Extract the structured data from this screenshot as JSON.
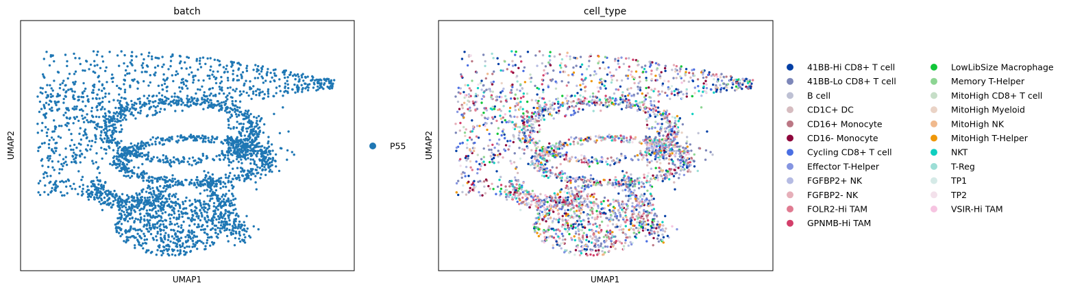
{
  "chart_data": [
    {
      "type": "scatter",
      "title": "batch",
      "xlabel": "UMAP1",
      "ylabel": "UMAP2",
      "xticks": "none",
      "yticks": "none",
      "grid": false,
      "legend": {
        "placement": "right",
        "entries": [
          {
            "label": "P55",
            "color": "#1f77b4"
          }
        ]
      },
      "point_color": "#1f77b4",
      "series": [
        {
          "name": "P55",
          "shape": "umap-cloud"
        }
      ]
    },
    {
      "type": "scatter",
      "title": "cell_type",
      "xlabel": "UMAP1",
      "ylabel": "UMAP2",
      "xticks": "none",
      "yticks": "none",
      "grid": false,
      "legend": {
        "placement": "right",
        "columns": 2,
        "entries": [
          {
            "label": "41BB-Hi CD8+ T cell",
            "color": "#023fa5"
          },
          {
            "label": "41BB-Lo CD8+ T cell",
            "color": "#7d87b9"
          },
          {
            "label": "B cell",
            "color": "#bec1d4"
          },
          {
            "label": "CD1C+ DC",
            "color": "#d6bcc0"
          },
          {
            "label": "CD16+ Monocyte",
            "color": "#bb7784"
          },
          {
            "label": "CD16- Monocyte",
            "color": "#8e063b"
          },
          {
            "label": "Cycling CD8+ T cell",
            "color": "#4a6fe3"
          },
          {
            "label": "Effector T-Helper",
            "color": "#8595e1"
          },
          {
            "label": "FGFBP2+ NK",
            "color": "#b5bbe3"
          },
          {
            "label": "FGFBP2- NK",
            "color": "#e6afb9"
          },
          {
            "label": "FOLR2-Hi TAM",
            "color": "#e07b91"
          },
          {
            "label": "GPNMB-Hi TAM",
            "color": "#d33f6a"
          },
          {
            "label": "LowLibSize Macrophage",
            "color": "#11c638"
          },
          {
            "label": "Memory T-Helper",
            "color": "#8dd593"
          },
          {
            "label": "MitoHigh CD8+ T cell",
            "color": "#c6dec7"
          },
          {
            "label": "MitoHigh Myeloid",
            "color": "#ead3c6"
          },
          {
            "label": "MitoHigh NK",
            "color": "#f0b98d"
          },
          {
            "label": "MitoHigh T-Helper",
            "color": "#ef9708"
          },
          {
            "label": "NKT",
            "color": "#0fcfc0"
          },
          {
            "label": "T-Reg",
            "color": "#9cded6"
          },
          {
            "label": "TP1",
            "color": "#d5eae7"
          },
          {
            "label": "TP2",
            "color": "#f3e1eb"
          },
          {
            "label": "VSIR-Hi TAM",
            "color": "#f6c4e1"
          }
        ]
      },
      "category_weights": [
        10,
        16,
        6,
        6,
        6,
        5,
        6,
        8,
        8,
        5,
        5,
        5,
        3,
        4,
        3,
        3,
        3,
        4,
        5,
        3,
        2,
        2,
        3
      ],
      "series": [
        {
          "name": "cell_type",
          "shape": "umap-cloud"
        }
      ]
    }
  ]
}
